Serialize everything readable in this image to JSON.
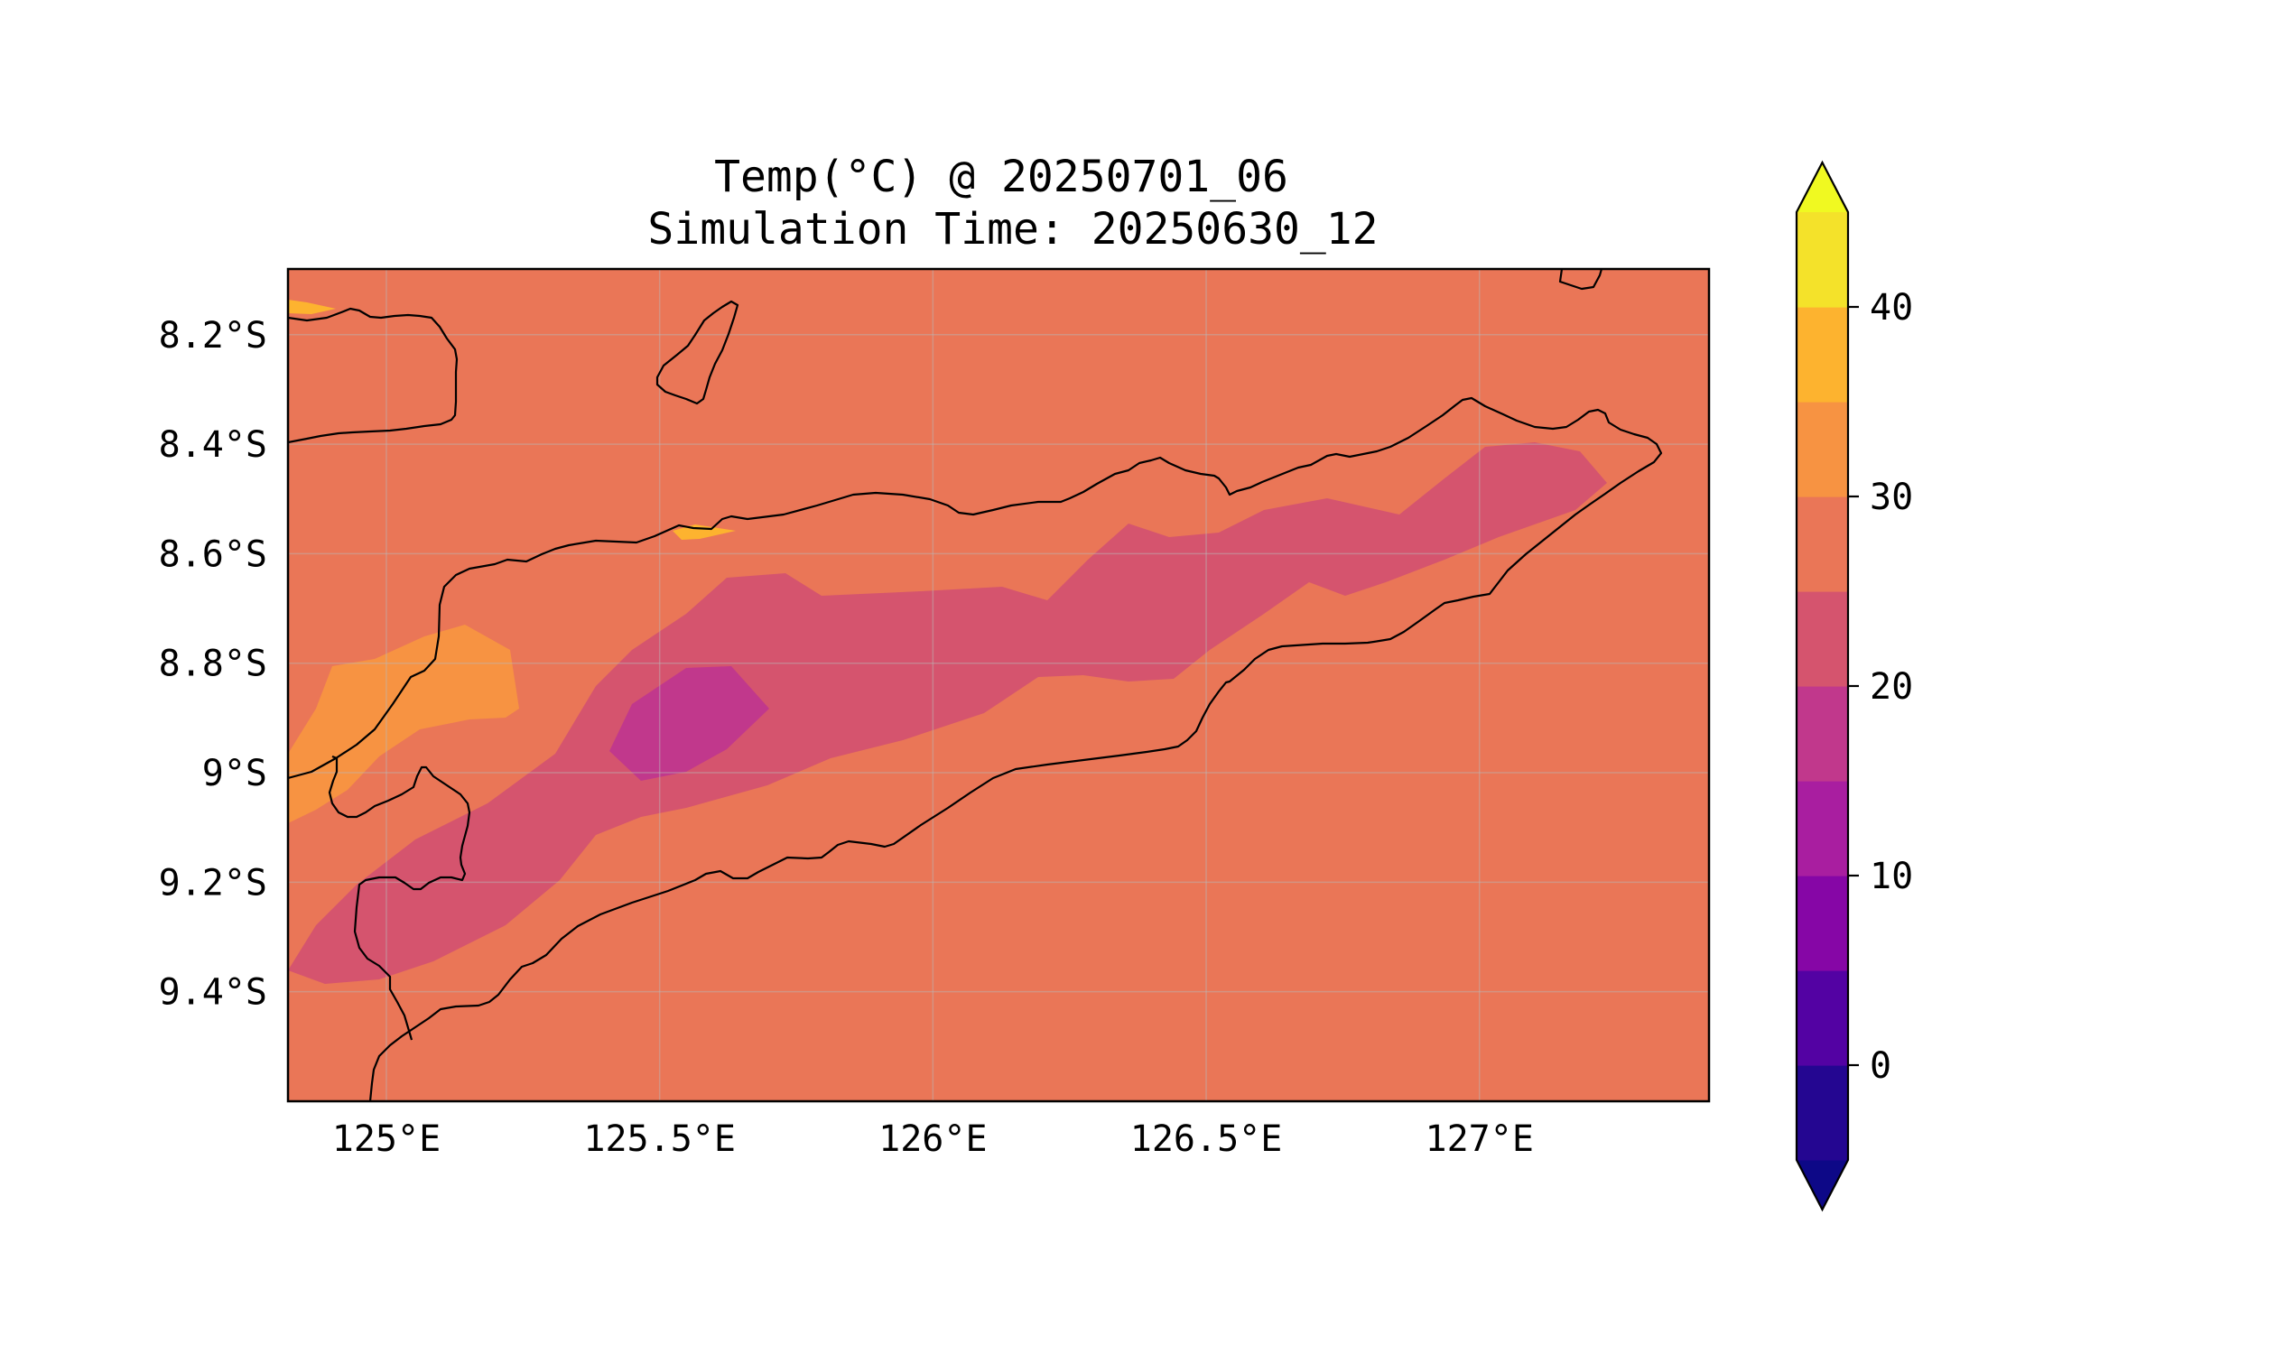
{
  "title": {
    "line1": "Temp(°C) @ 20250701_06",
    "line2": "Simulation Time: 20250630_12"
  },
  "map": {
    "lon_range": [
      124.82,
      127.42
    ],
    "lat_range": [
      -9.6,
      -8.08
    ],
    "x_ticks": [
      {
        "value": 125.0,
        "label": "125°E"
      },
      {
        "value": 125.5,
        "label": "125.5°E"
      },
      {
        "value": 126.0,
        "label": "126°E"
      },
      {
        "value": 126.5,
        "label": "126.5°E"
      },
      {
        "value": 127.0,
        "label": "127°E"
      }
    ],
    "y_ticks": [
      {
        "value": -8.2,
        "label": "8.2°S"
      },
      {
        "value": -8.4,
        "label": "8.4°S"
      },
      {
        "value": -8.6,
        "label": "8.6°S"
      },
      {
        "value": -8.8,
        "label": "8.8°S"
      },
      {
        "value": -9.0,
        "label": "9°S"
      },
      {
        "value": -9.2,
        "label": "9.2°S"
      },
      {
        "value": -9.4,
        "label": "9.4°S"
      }
    ],
    "grid": true,
    "background_color": "#ea7657"
  },
  "colorbar": {
    "ticks": [
      {
        "value": 0,
        "label": "0"
      },
      {
        "value": 10,
        "label": "10"
      },
      {
        "value": 20,
        "label": "20"
      },
      {
        "value": 30,
        "label": "30"
      },
      {
        "value": 40,
        "label": "40"
      }
    ],
    "range": [
      -5,
      45
    ],
    "levels": [
      {
        "from": -5,
        "to": 0,
        "color": "#240691"
      },
      {
        "from": 0,
        "to": 5,
        "color": "#5302a3"
      },
      {
        "from": 5,
        "to": 10,
        "color": "#8606a6"
      },
      {
        "from": 10,
        "to": 15,
        "color": "#a91ea0"
      },
      {
        "from": 15,
        "to": 20,
        "color": "#c1388c"
      },
      {
        "from": 20,
        "to": 25,
        "color": "#d5546e"
      },
      {
        "from": 25,
        "to": 30,
        "color": "#ea7657"
      },
      {
        "from": 30,
        "to": 35,
        "color": "#f79342"
      },
      {
        "from": 35,
        "to": 40,
        "color": "#fdb32f"
      },
      {
        "from": 40,
        "to": 45,
        "color": "#f4e22a"
      }
    ],
    "under_color": "#0d0887",
    "over_color": "#f0f921"
  }
}
